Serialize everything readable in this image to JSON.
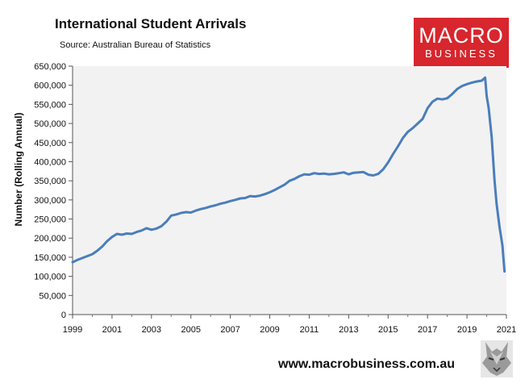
{
  "header": {
    "title": "International Student Arrivals",
    "source": "Source: Australian Bureau of Statistics"
  },
  "logo": {
    "line1": "MACRO",
    "line2": "BUSINESS",
    "color": "#d7262d"
  },
  "footer": {
    "url": "www.macrobusiness.com.au",
    "mascot_icon": "wolf-icon"
  },
  "chart_data": {
    "type": "line",
    "ylabel": "Number (Rolling Annual)",
    "xlabel": "",
    "xlim": [
      1999,
      2021
    ],
    "ylim": [
      0,
      650000
    ],
    "x_ticks": [
      1999,
      2001,
      2003,
      2005,
      2007,
      2009,
      2011,
      2013,
      2015,
      2017,
      2019,
      2021
    ],
    "y_ticks": [
      0,
      50000,
      100000,
      150000,
      200000,
      250000,
      300000,
      350000,
      400000,
      450000,
      500000,
      550000,
      600000,
      650000
    ],
    "y_tick_labels": [
      "0",
      "50,000",
      "100,000",
      "150,000",
      "200,000",
      "250,000",
      "300,000",
      "350,000",
      "400,000",
      "450,000",
      "500,000",
      "550,000",
      "600,000",
      "650,000"
    ],
    "grid": false,
    "plot_background": "#f2f2f2",
    "series": [
      {
        "color": "#4a7ebb",
        "x": [
          1999.0,
          1999.25,
          1999.5,
          1999.75,
          2000.0,
          2000.25,
          2000.5,
          2000.75,
          2001.0,
          2001.25,
          2001.5,
          2001.75,
          2002.0,
          2002.25,
          2002.5,
          2002.75,
          2003.0,
          2003.25,
          2003.5,
          2003.75,
          2004.0,
          2004.25,
          2004.5,
          2004.75,
          2005.0,
          2005.25,
          2005.5,
          2005.75,
          2006.0,
          2006.25,
          2006.5,
          2006.75,
          2007.0,
          2007.25,
          2007.5,
          2007.75,
          2008.0,
          2008.25,
          2008.5,
          2008.75,
          2009.0,
          2009.25,
          2009.5,
          2009.75,
          2010.0,
          2010.25,
          2010.5,
          2010.75,
          2011.0,
          2011.25,
          2011.5,
          2011.75,
          2012.0,
          2012.25,
          2012.5,
          2012.75,
          2013.0,
          2013.25,
          2013.5,
          2013.75,
          2014.0,
          2014.25,
          2014.5,
          2014.75,
          2015.0,
          2015.25,
          2015.5,
          2015.75,
          2016.0,
          2016.25,
          2016.5,
          2016.75,
          2017.0,
          2017.25,
          2017.5,
          2017.75,
          2018.0,
          2018.25,
          2018.5,
          2018.75,
          2019.0,
          2019.25,
          2019.5,
          2019.75,
          2019.92,
          2020.0,
          2020.1,
          2020.25,
          2020.4,
          2020.5,
          2020.65,
          2020.8,
          2020.9
        ],
        "y": [
          137000,
          143000,
          148000,
          153000,
          158000,
          167000,
          178000,
          192000,
          203000,
          211000,
          209000,
          212000,
          211000,
          216000,
          220000,
          226000,
          222000,
          225000,
          231000,
          243000,
          259000,
          262000,
          266000,
          268000,
          267000,
          272000,
          276000,
          279000,
          283000,
          286000,
          290000,
          293000,
          297000,
          300000,
          304000,
          305000,
          310000,
          309000,
          311000,
          315000,
          320000,
          326000,
          333000,
          340000,
          350000,
          355000,
          362000,
          367000,
          366000,
          370000,
          368000,
          369000,
          367000,
          368000,
          370000,
          372000,
          367000,
          371000,
          372000,
          373000,
          366000,
          364000,
          368000,
          380000,
          398000,
          420000,
          440000,
          462000,
          478000,
          488000,
          500000,
          512000,
          540000,
          557000,
          565000,
          563000,
          566000,
          577000,
          590000,
          598000,
          603000,
          607000,
          610000,
          612000,
          620000,
          572000,
          540000,
          465000,
          350000,
          290000,
          230000,
          180000,
          113000
        ]
      }
    ]
  }
}
